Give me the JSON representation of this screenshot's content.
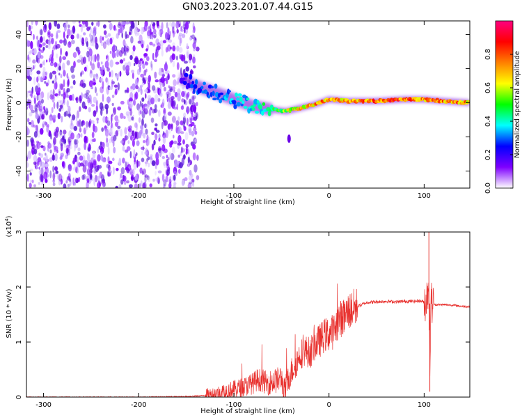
{
  "title": "GN03.2023.201.07.44.G15",
  "chart_data": [
    {
      "type": "heatmap",
      "xlabel": "Height of straight line (km)",
      "ylabel": "Frequency (Hz)",
      "xlim": [
        -318,
        148
      ],
      "ylim": [
        -50,
        48
      ],
      "xticks": [
        -300,
        -200,
        -100,
        0,
        100
      ],
      "xtick_labels": [
        "-300",
        "-200",
        "-100",
        "0",
        "100"
      ],
      "yticks": [
        -40,
        -20,
        0,
        20,
        40
      ],
      "ytick_labels": [
        "-40",
        "-20",
        "0",
        "20",
        "40"
      ],
      "colorbar": {
        "label": "Normalized spectral amplitude",
        "range": [
          0.0,
          1.0
        ],
        "ticks": [
          0.0,
          0.2,
          0.4,
          0.6,
          0.8
        ],
        "tick_labels": [
          "0.0",
          "0.2",
          "0.4",
          "0.6",
          "0.8"
        ],
        "colormap": [
          "#ffffff",
          "#7f00ff",
          "#0000ff",
          "#00ffff",
          "#00ff00",
          "#ffff00",
          "#ff8000",
          "#ff0000",
          "#ff0080"
        ]
      },
      "ridge": {
        "x": [
          -155,
          -140,
          -120,
          -100,
          -80,
          -60,
          -45,
          -30,
          -15,
          0,
          20,
          50,
          80,
          100,
          120,
          148
        ],
        "y": [
          14,
          10,
          6,
          2,
          -2,
          -4,
          -5,
          -3,
          -1,
          2,
          1,
          1,
          2,
          2,
          1,
          0
        ],
        "amplitude": [
          0.2,
          0.3,
          0.3,
          0.35,
          0.4,
          0.5,
          0.6,
          0.7,
          0.75,
          0.8,
          0.75,
          0.85,
          0.85,
          0.8,
          0.8,
          0.75
        ]
      },
      "noise_region": {
        "x_range": [
          -318,
          -138
        ],
        "y_range": [
          -50,
          48
        ],
        "amplitude": 0.1
      },
      "grid": false
    },
    {
      "type": "line",
      "xlabel": "Height of straight line (km)",
      "ylabel": "SNR (10 * v/v)",
      "y_multiplier": "(x10^4)",
      "xlim": [
        -318,
        148
      ],
      "ylim": [
        0,
        3
      ],
      "xticks": [
        -300,
        -200,
        -100,
        0,
        100
      ],
      "xtick_labels": [
        "-300",
        "-200",
        "-100",
        "0",
        "100"
      ],
      "yticks": [
        0,
        1,
        2,
        3
      ],
      "ytick_labels": [
        "0",
        "1",
        "2",
        "3"
      ],
      "color": "#e8312e",
      "series": [
        {
          "x": [
            -318,
            -250,
            -200,
            -150,
            -130,
            -120,
            -110,
            -100,
            -90,
            -80,
            -75,
            -70,
            -65,
            -60,
            -55,
            -50,
            -47,
            -45,
            -40,
            -35,
            -30,
            -25,
            -20,
            -15,
            -10,
            -5,
            0,
            5,
            10,
            15,
            20,
            30,
            40,
            50,
            60,
            70,
            80,
            90,
            95,
            100,
            103,
            105,
            106,
            107,
            108,
            110,
            120,
            130,
            140,
            148
          ],
          "y": [
            0.0,
            0.0,
            0.0,
            0.01,
            0.03,
            0.06,
            0.1,
            0.14,
            0.18,
            0.25,
            0.32,
            0.3,
            0.25,
            0.28,
            0.3,
            0.35,
            0.1,
            0.2,
            0.45,
            0.6,
            0.78,
            0.85,
            0.8,
            0.95,
            1.02,
            1.12,
            1.15,
            1.2,
            1.4,
            1.45,
            1.55,
            1.65,
            1.72,
            1.73,
            1.74,
            1.73,
            1.74,
            1.74,
            1.75,
            1.73,
            1.8,
            2.2,
            0.1,
            1.9,
            1.7,
            1.68,
            1.68,
            1.67,
            1.65,
            1.64
          ]
        }
      ],
      "grid": false
    }
  ]
}
